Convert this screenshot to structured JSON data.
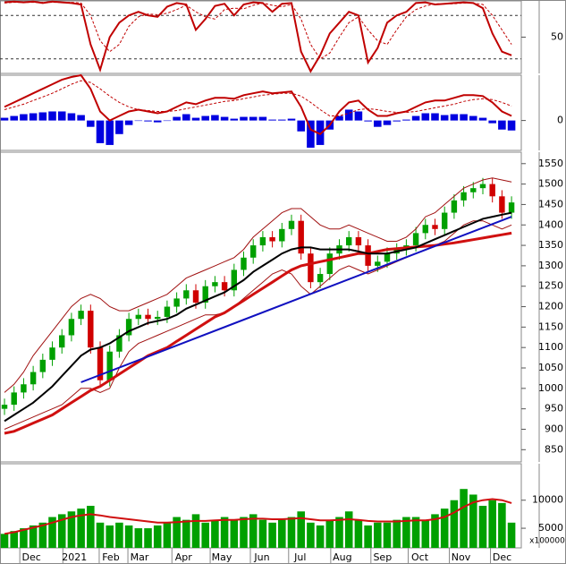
{
  "chart_data": [
    {
      "type": "line",
      "xlim": [
        -0.47,
        54.02
      ],
      "ylim": [
        0,
        100
      ],
      "yticks": [
        50
      ],
      "levels": [
        20,
        80
      ],
      "series": [
        {
          "color": "#c00000",
          "style": "solid",
          "values": [
            98,
            99,
            98,
            99,
            97,
            99,
            98,
            97,
            95,
            40,
            5,
            50,
            70,
            80,
            85,
            80,
            78,
            92,
            97,
            95,
            60,
            75,
            93,
            96,
            80,
            95,
            98,
            97,
            85,
            96,
            97,
            30,
            3,
            25,
            55,
            70,
            85,
            80,
            15,
            35,
            70,
            80,
            85,
            97,
            98,
            95,
            96,
            97,
            98,
            97,
            90,
            55,
            30,
            25
          ]
        },
        {
          "color": "#c00000",
          "style": "dashed",
          "values": [
            97,
            98,
            98,
            98,
            98,
            98,
            98,
            98,
            97,
            80,
            45,
            30,
            40,
            65,
            78,
            82,
            81,
            83,
            88,
            94,
            85,
            78,
            75,
            88,
            90,
            89,
            94,
            97,
            94,
            92,
            95,
            75,
            40,
            20,
            28,
            50,
            70,
            78,
            60,
            45,
            40,
            60,
            78,
            88,
            93,
            96,
            96,
            96,
            97,
            97,
            95,
            80,
            60,
            40
          ]
        }
      ]
    },
    {
      "type": "line",
      "xlim": [
        -0.47,
        54.02
      ],
      "ylim": [
        -33,
        50
      ],
      "yticks": [
        0
      ],
      "series": [
        {
          "color": "#0000e0",
          "style": "bar",
          "values": [
            3,
            5,
            7,
            8,
            9,
            10,
            10,
            8,
            6,
            -7,
            -25,
            -27,
            -15,
            -5,
            0,
            -1,
            -2,
            0,
            4,
            7,
            3,
            5,
            6,
            4,
            2,
            4,
            4,
            4,
            1,
            1,
            2,
            -12,
            -30,
            -27,
            -10,
            5,
            12,
            10,
            -1,
            -7,
            -5,
            -1,
            1,
            5,
            8,
            8,
            6,
            7,
            7,
            5,
            3,
            -3,
            -10,
            -11
          ]
        },
        {
          "color": "#c00000",
          "style": "solid",
          "values": [
            15,
            20,
            25,
            30,
            35,
            40,
            45,
            48,
            50,
            35,
            10,
            0,
            5,
            10,
            12,
            10,
            8,
            10,
            15,
            20,
            18,
            22,
            25,
            25,
            24,
            28,
            30,
            32,
            30,
            31,
            32,
            15,
            -10,
            -15,
            -5,
            10,
            20,
            22,
            12,
            5,
            5,
            8,
            10,
            15,
            20,
            22,
            22,
            25,
            28,
            28,
            27,
            20,
            10,
            5
          ]
        },
        {
          "color": "#c00000",
          "style": "dashed",
          "values": [
            12,
            15,
            18,
            22,
            26,
            30,
            35,
            40,
            44,
            42,
            35,
            27,
            20,
            15,
            12,
            11,
            10,
            10,
            11,
            13,
            15,
            17,
            19,
            21,
            22,
            24,
            26,
            28,
            29,
            30,
            30,
            27,
            20,
            12,
            5,
            5,
            8,
            12,
            13,
            12,
            10,
            9,
            9,
            10,
            12,
            14,
            16,
            18,
            21,
            23,
            24,
            23,
            20,
            16
          ]
        }
      ]
    },
    {
      "type": "candlestick",
      "xlim": [
        -0.47,
        54.02
      ],
      "ylim": [
        820,
        1578
      ],
      "yticks": [
        850,
        900,
        950,
        1000,
        1050,
        1100,
        1150,
        1200,
        1250,
        1300,
        1350,
        1400,
        1450,
        1500,
        1550
      ],
      "up_color": "#00a000",
      "down_color": "#d00000",
      "open": [
        950,
        960,
        990,
        1010,
        1040,
        1070,
        1100,
        1130,
        1170,
        1190,
        1100,
        1020,
        1090,
        1130,
        1170,
        1180,
        1170,
        1175,
        1200,
        1220,
        1240,
        1210,
        1250,
        1260,
        1240,
        1290,
        1320,
        1350,
        1370,
        1360,
        1390,
        1410,
        1330,
        1260,
        1280,
        1330,
        1350,
        1370,
        1350,
        1300,
        1310,
        1330,
        1340,
        1350,
        1380,
        1400,
        1390,
        1430,
        1460,
        1480,
        1490,
        1500,
        1470,
        1430
      ],
      "high": [
        975,
        1005,
        1025,
        1055,
        1085,
        1115,
        1145,
        1185,
        1205,
        1205,
        1115,
        1105,
        1145,
        1185,
        1195,
        1195,
        1190,
        1215,
        1235,
        1255,
        1255,
        1265,
        1275,
        1275,
        1305,
        1335,
        1365,
        1385,
        1385,
        1405,
        1425,
        1425,
        1345,
        1295,
        1345,
        1365,
        1385,
        1385,
        1365,
        1325,
        1345,
        1355,
        1365,
        1395,
        1415,
        1415,
        1445,
        1475,
        1495,
        1505,
        1515,
        1515,
        1485,
        1470
      ],
      "low": [
        935,
        945,
        975,
        995,
        1025,
        1055,
        1085,
        1115,
        1155,
        1085,
        1005,
        1005,
        1075,
        1115,
        1155,
        1155,
        1155,
        1160,
        1185,
        1205,
        1195,
        1195,
        1235,
        1225,
        1225,
        1275,
        1305,
        1335,
        1345,
        1345,
        1375,
        1315,
        1245,
        1245,
        1265,
        1315,
        1335,
        1335,
        1285,
        1285,
        1295,
        1315,
        1325,
        1335,
        1365,
        1375,
        1375,
        1415,
        1445,
        1465,
        1475,
        1455,
        1415,
        1415
      ],
      "close": [
        960,
        990,
        1010,
        1040,
        1070,
        1100,
        1130,
        1170,
        1190,
        1100,
        1020,
        1090,
        1130,
        1170,
        1180,
        1170,
        1175,
        1200,
        1220,
        1240,
        1210,
        1250,
        1260,
        1240,
        1290,
        1320,
        1350,
        1370,
        1360,
        1390,
        1410,
        1330,
        1260,
        1280,
        1330,
        1350,
        1370,
        1350,
        1300,
        1310,
        1330,
        1340,
        1350,
        1380,
        1400,
        1390,
        1430,
        1460,
        1480,
        1490,
        1500,
        1470,
        1430,
        1455
      ],
      "series": [
        {
          "color": "#a01010",
          "width": 1,
          "values": [
            990,
            1010,
            1040,
            1080,
            1110,
            1140,
            1170,
            1200,
            1220,
            1230,
            1220,
            1200,
            1190,
            1190,
            1200,
            1210,
            1220,
            1230,
            1250,
            1270,
            1280,
            1290,
            1300,
            1310,
            1320,
            1340,
            1370,
            1390,
            1410,
            1430,
            1440,
            1440,
            1420,
            1400,
            1390,
            1390,
            1400,
            1390,
            1380,
            1370,
            1360,
            1360,
            1370,
            1390,
            1420,
            1430,
            1450,
            1470,
            1490,
            1500,
            1510,
            1515,
            1510,
            1505
          ]
        },
        {
          "color": "#a01010",
          "width": 1,
          "values": [
            900,
            910,
            920,
            930,
            940,
            950,
            960,
            980,
            1000,
            1000,
            990,
            1000,
            1050,
            1090,
            1110,
            1120,
            1130,
            1140,
            1150,
            1160,
            1170,
            1180,
            1180,
            1185,
            1200,
            1220,
            1240,
            1260,
            1280,
            1290,
            1280,
            1250,
            1230,
            1250,
            1270,
            1290,
            1300,
            1290,
            1280,
            1290,
            1300,
            1310,
            1320,
            1330,
            1340,
            1350,
            1360,
            1380,
            1400,
            1410,
            1410,
            1400,
            1390,
            1400
          ]
        },
        {
          "color": "#d01010",
          "width": 3,
          "values": [
            890,
            895,
            905,
            915,
            925,
            935,
            950,
            965,
            980,
            995,
            1005,
            1020,
            1035,
            1050,
            1065,
            1080,
            1090,
            1100,
            1115,
            1130,
            1145,
            1160,
            1175,
            1185,
            1200,
            1215,
            1230,
            1245,
            1260,
            1275,
            1290,
            1300,
            1305,
            1310,
            1315,
            1320,
            1325,
            1330,
            1330,
            1335,
            1340,
            1342,
            1344,
            1346,
            1348,
            1350,
            1353,
            1356,
            1360,
            1364,
            1368,
            1372,
            1376,
            1380
          ]
        },
        {
          "color": "#000000",
          "width": 2,
          "values": [
            920,
            935,
            950,
            965,
            985,
            1005,
            1030,
            1055,
            1080,
            1095,
            1100,
            1110,
            1125,
            1140,
            1150,
            1160,
            1165,
            1170,
            1180,
            1195,
            1205,
            1215,
            1225,
            1235,
            1250,
            1265,
            1285,
            1300,
            1315,
            1330,
            1340,
            1345,
            1345,
            1340,
            1340,
            1340,
            1340,
            1335,
            1330,
            1330,
            1330,
            1335,
            1340,
            1345,
            1355,
            1365,
            1375,
            1385,
            1395,
            1405,
            1415,
            1420,
            1425,
            1430
          ]
        },
        {
          "color": "#1010c0",
          "width": 2,
          "x": [
            8,
            53
          ],
          "values": [
            1015,
            1420
          ]
        }
      ]
    },
    {
      "type": "bar",
      "xlim": [
        -0.47,
        54.02
      ],
      "ylim": [
        1500,
        16500
      ],
      "yticks": [
        5000,
        10000
      ],
      "unit_label": "x100000",
      "xticks": [
        {
          "value": 1.6,
          "label": "Dec"
        },
        {
          "value": 6.1,
          "label": "2021"
        },
        {
          "value": 9.9,
          "label": "Feb"
        },
        {
          "value": 12.9,
          "label": "Mar"
        },
        {
          "value": 17.5,
          "label": "Apr"
        },
        {
          "value": 21.5,
          "label": "May"
        },
        {
          "value": 25.7,
          "label": "Jun"
        },
        {
          "value": 29.7,
          "label": "Jul"
        },
        {
          "value": 34.1,
          "label": "Aug"
        },
        {
          "value": 38.3,
          "label": "Sep"
        },
        {
          "value": 42.2,
          "label": "Oct"
        },
        {
          "value": 46.5,
          "label": "Nov"
        },
        {
          "value": 50.8,
          "label": "Dec"
        }
      ],
      "series": [
        {
          "color": "#00a000",
          "style": "bar",
          "values": [
            4000,
            4500,
            5000,
            5500,
            6000,
            7000,
            7500,
            8000,
            8500,
            9000,
            6000,
            5500,
            6000,
            5500,
            5000,
            5000,
            5500,
            6000,
            7000,
            6500,
            7500,
            6000,
            6500,
            7000,
            6500,
            7000,
            7500,
            6500,
            6000,
            6500,
            7000,
            8000,
            6000,
            5500,
            6500,
            7000,
            8000,
            6500,
            5500,
            6000,
            6000,
            6500,
            7000,
            7000,
            6500,
            7500,
            8500,
            10000,
            12000,
            11000,
            9000,
            10000,
            9500,
            6000
          ]
        },
        {
          "color": "#d01010",
          "style": "solid",
          "values": [
            4000,
            4300,
            4700,
            5100,
            5500,
            6000,
            6500,
            7000,
            7300,
            7500,
            7300,
            7000,
            6800,
            6600,
            6400,
            6200,
            6000,
            6000,
            6100,
            6200,
            6300,
            6300,
            6400,
            6500,
            6500,
            6600,
            6700,
            6700,
            6600,
            6600,
            6700,
            6800,
            6600,
            6400,
            6400,
            6500,
            6600,
            6500,
            6300,
            6200,
            6200,
            6200,
            6300,
            6400,
            6400,
            6600,
            7000,
            7800,
            8800,
            9600,
            10000,
            10200,
            10000,
            9500
          ]
        }
      ]
    }
  ]
}
